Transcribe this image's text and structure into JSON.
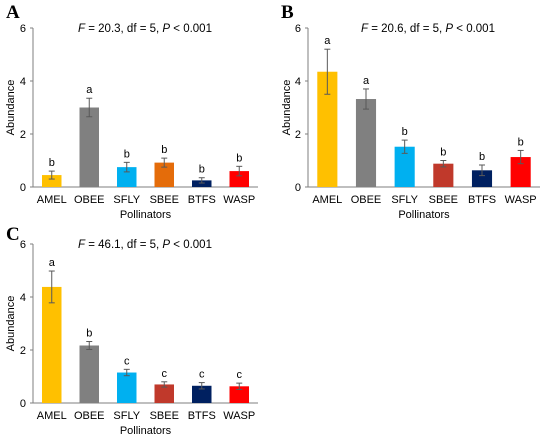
{
  "chart_data": [
    {
      "type": "bar",
      "panel": "A",
      "annotation": {
        "f": "F",
        "eq1": " = 20.3, df = 5, ",
        "p": "P",
        "eq2": " < 0.001"
      },
      "categories": [
        "AMEL",
        "OBEE",
        "SFLY",
        "SBEE",
        "BTFS",
        "WASP"
      ],
      "values": [
        0.45,
        3.0,
        0.75,
        0.92,
        0.25,
        0.6
      ],
      "errors": [
        0.15,
        0.35,
        0.18,
        0.17,
        0.1,
        0.18
      ],
      "letters": [
        "b",
        "a",
        "b",
        "b",
        "b",
        "b"
      ],
      "colors": [
        "#FFC000",
        "#808080",
        "#00B0F0",
        "#E46C0A",
        "#002060",
        "#FF0000"
      ],
      "xlabel": "Pollinators",
      "ylabel": "Abundance",
      "ylim": [
        0,
        6
      ],
      "yticks": [
        0,
        2,
        4,
        6
      ]
    },
    {
      "type": "bar",
      "panel": "B",
      "annotation": {
        "f": "F",
        "eq1": " = 20.6, df = 5, ",
        "p": "P",
        "eq2": " < 0.001"
      },
      "categories": [
        "AMEL",
        "OBEE",
        "SFLY",
        "SBEE",
        "BTFS",
        "WASP"
      ],
      "values": [
        4.35,
        3.32,
        1.52,
        0.88,
        0.63,
        1.13
      ],
      "errors": [
        0.85,
        0.38,
        0.25,
        0.12,
        0.2,
        0.25
      ],
      "letters": [
        "a",
        "a",
        "b",
        "b",
        "b",
        "b"
      ],
      "colors": [
        "#FFC000",
        "#808080",
        "#00B0F0",
        "#C0392B",
        "#002060",
        "#FF0000"
      ],
      "xlabel": "Pollinators",
      "ylabel": "Abundance",
      "ylim": [
        0,
        6
      ],
      "yticks": [
        0,
        2,
        4,
        6
      ]
    },
    {
      "type": "bar",
      "panel": "C",
      "annotation": {
        "f": "F",
        "eq1": " = 46.1, df = 5, ",
        "p": "P",
        "eq2": " < 0.001"
      },
      "categories": [
        "AMEL",
        "OBEE",
        "SFLY",
        "SBEE",
        "BTFS",
        "WASP"
      ],
      "values": [
        4.38,
        2.17,
        1.15,
        0.7,
        0.65,
        0.63
      ],
      "errors": [
        0.6,
        0.15,
        0.12,
        0.1,
        0.12,
        0.12
      ],
      "letters": [
        "a",
        "b",
        "c",
        "c",
        "c",
        "c"
      ],
      "colors": [
        "#FFC000",
        "#808080",
        "#00B0F0",
        "#C0392B",
        "#002060",
        "#FF0000"
      ],
      "xlabel": "Pollinators",
      "ylabel": "Abundance",
      "ylim": [
        0,
        6
      ],
      "yticks": [
        0,
        2,
        4,
        6
      ]
    }
  ]
}
